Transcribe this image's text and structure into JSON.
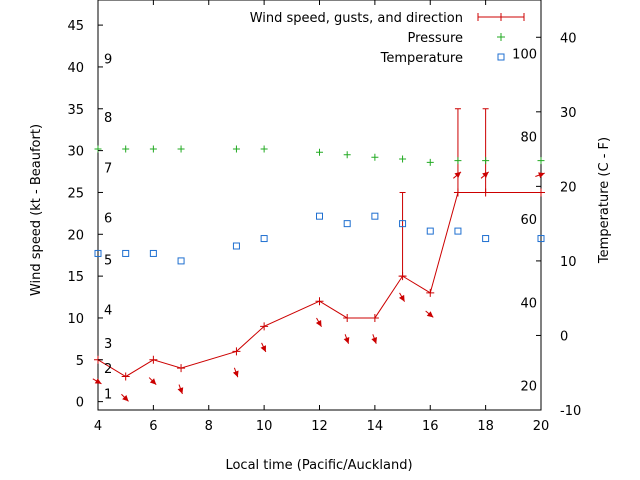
{
  "chart_data": {
    "type": "line",
    "xlabel": "Local time (Pacific/Auckland)",
    "ylabel": "Wind speed (kt - Beaufort)",
    "y2label": "Temperature (C - F)",
    "xlim": [
      4,
      20
    ],
    "ylim": [
      -1,
      48
    ],
    "y2lim": [
      -10,
      45
    ],
    "x_ticks": [
      "4",
      "6",
      "8",
      "10",
      "12",
      "14",
      "16",
      "18",
      "20"
    ],
    "y_ticks": [
      "0",
      "5",
      "10",
      "15",
      "20",
      "25",
      "30",
      "35",
      "40",
      "45"
    ],
    "y2_ticks": [
      "-10",
      "0",
      "10",
      "20",
      "30",
      "40"
    ],
    "beaufort_labels": [
      {
        "label": "1",
        "y": 1
      },
      {
        "label": "2",
        "y": 4
      },
      {
        "label": "3",
        "y": 7
      },
      {
        "label": "4",
        "y": 11
      },
      {
        "label": "5",
        "y": 17
      },
      {
        "label": "6",
        "y": 22
      },
      {
        "label": "7",
        "y": 28
      },
      {
        "label": "8",
        "y": 34
      },
      {
        "label": "9",
        "y": 41
      }
    ],
    "fahrenheit_labels": [
      {
        "label": "20",
        "y2": -6.7
      },
      {
        "label": "40",
        "y2": 4.4
      },
      {
        "label": "60",
        "y2": 15.6
      },
      {
        "label": "80",
        "y2": 26.7
      },
      {
        "label": "100",
        "y2": 37.8
      }
    ],
    "legend_position": "top-right",
    "colors": {
      "wind": "#cc0000",
      "pressure": "#22aa22",
      "temperature": "#1f6fd0"
    },
    "series": [
      {
        "name": "Wind speed, gusts, and direction",
        "axis": "left",
        "style": "line-errorbar",
        "x": [
          4,
          5,
          6,
          7,
          9,
          10,
          12,
          13,
          14,
          15,
          16,
          17,
          18,
          20
        ],
        "y": [
          5,
          3,
          5,
          4,
          6,
          9,
          12,
          10,
          10,
          15,
          13,
          25,
          25,
          25
        ],
        "gusts": [
          5,
          3,
          5,
          4,
          6,
          9,
          12,
          10,
          10,
          25,
          13,
          35,
          35,
          25
        ],
        "direction_deg": [
          300,
          315,
          315,
          340,
          340,
          335,
          330,
          340,
          340,
          330,
          310,
          230,
          230,
          250
        ]
      },
      {
        "name": "Pressure",
        "axis": "left",
        "style": "points-plus",
        "x": [
          4,
          5,
          6,
          7,
          9,
          10,
          12,
          13,
          14,
          15,
          16,
          17,
          18,
          20
        ],
        "y": [
          30.2,
          30.2,
          30.2,
          30.2,
          30.2,
          30.2,
          29.8,
          29.5,
          29.2,
          29.0,
          28.6,
          28.8,
          28.8,
          28.8
        ]
      },
      {
        "name": "Temperature",
        "axis": "right",
        "style": "points-square",
        "x": [
          4,
          5,
          6,
          7,
          9,
          10,
          12,
          13,
          14,
          15,
          16,
          17,
          18,
          20
        ],
        "y": [
          11,
          11,
          11,
          10,
          12,
          13,
          16,
          15,
          16,
          15,
          14,
          14,
          13,
          13
        ]
      }
    ]
  }
}
